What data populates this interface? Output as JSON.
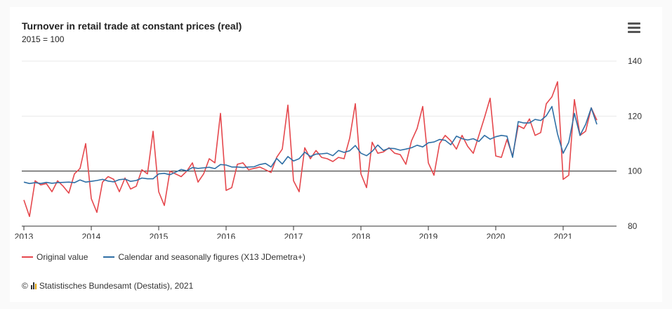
{
  "header": {
    "title": "Turnover in retail trade at constant prices (real)",
    "subtitle": "2015 = 100"
  },
  "legend": {
    "original": "Original value",
    "adjusted": "Calendar and seasonally figures (X13 JDemetra+)"
  },
  "credit": {
    "copyright": "©",
    "text": "Statistisches Bundesamt (Destatis), 2021"
  },
  "colors": {
    "original": "#e5484d",
    "adjusted": "#2f6fa5",
    "reference_line": "#222222",
    "grid": "#eaeaea"
  },
  "chart_data": {
    "type": "line",
    "title": "Turnover in retail trade at constant prices (real)",
    "subtitle": "2015 = 100",
    "x_start": "2013-01",
    "frequency": "monthly",
    "x_ticks": [
      "2013",
      "2014",
      "2015",
      "2016",
      "2017",
      "2018",
      "2019",
      "2020",
      "2021"
    ],
    "y_ticks": [
      80,
      100,
      120,
      140
    ],
    "ylim": [
      80,
      140
    ],
    "y_axis_position": "right",
    "reference_line": 100,
    "grid": true,
    "legend_position": "bottom-left",
    "series": [
      {
        "name": "Original value",
        "values": [
          89.5,
          83.5,
          96.5,
          95.0,
          95.5,
          92.5,
          96.5,
          94.5,
          92.0,
          99.0,
          101.0,
          110.0,
          90.0,
          85.0,
          96.0,
          98.0,
          97.0,
          92.5,
          97.5,
          93.5,
          94.5,
          100.5,
          99.0,
          114.5,
          92.5,
          87.5,
          100.0,
          99.0,
          98.0,
          100.0,
          103.0,
          96.0,
          99.0,
          104.5,
          103.0,
          121.0,
          93.0,
          94.0,
          102.5,
          103.0,
          100.5,
          101.0,
          101.5,
          100.5,
          99.5,
          105.0,
          108.0,
          124.0,
          96.5,
          92.5,
          108.5,
          104.5,
          107.5,
          105.0,
          104.5,
          103.5,
          105.0,
          104.5,
          112.0,
          124.5,
          99.0,
          94.0,
          110.5,
          106.5,
          107.0,
          108.5,
          106.5,
          106.0,
          102.5,
          111.0,
          115.5,
          123.5,
          103.0,
          98.5,
          110.0,
          113.0,
          111.0,
          108.0,
          113.0,
          109.0,
          106.5,
          113.0,
          119.5,
          126.5,
          105.5,
          105.0,
          111.5,
          105.5,
          116.5,
          115.5,
          119.0,
          113.0,
          114.0,
          124.5,
          127.0,
          132.5,
          97.0,
          98.5,
          126.0,
          113.0,
          114.5,
          123.0,
          118.5
        ]
      },
      {
        "name": "Calendar and seasonally figures (X13 JDemetra+)",
        "values": [
          96.0,
          95.5,
          95.8,
          95.5,
          95.9,
          95.6,
          95.8,
          95.9,
          96.0,
          95.8,
          96.8,
          96.0,
          96.3,
          96.6,
          97.0,
          96.4,
          96.1,
          96.9,
          97.1,
          96.3,
          96.6,
          97.5,
          97.2,
          97.2,
          99.0,
          99.2,
          98.7,
          99.6,
          100.6,
          100.1,
          101.3,
          101.0,
          101.2,
          101.4,
          100.9,
          102.4,
          102.2,
          101.5,
          101.5,
          101.3,
          101.5,
          101.6,
          102.4,
          102.8,
          101.5,
          104.6,
          102.6,
          105.3,
          103.7,
          104.5,
          106.9,
          105.3,
          106.2,
          106.3,
          106.5,
          105.6,
          107.5,
          106.8,
          107.4,
          109.3,
          106.5,
          105.6,
          107.2,
          109.5,
          107.5,
          108.3,
          108.2,
          107.6,
          108.0,
          108.5,
          109.4,
          108.8,
          110.3,
          110.6,
          111.5,
          111.2,
          109.6,
          112.7,
          111.8,
          111.3,
          111.8,
          110.8,
          113.0,
          111.6,
          112.5,
          113.0,
          112.7,
          105.0,
          118.0,
          117.5,
          117.5,
          118.8,
          118.4,
          120.1,
          123.5,
          113.5,
          106.5,
          110.5,
          121.0,
          113.0,
          117.0,
          123.0,
          117.0
        ]
      }
    ]
  }
}
